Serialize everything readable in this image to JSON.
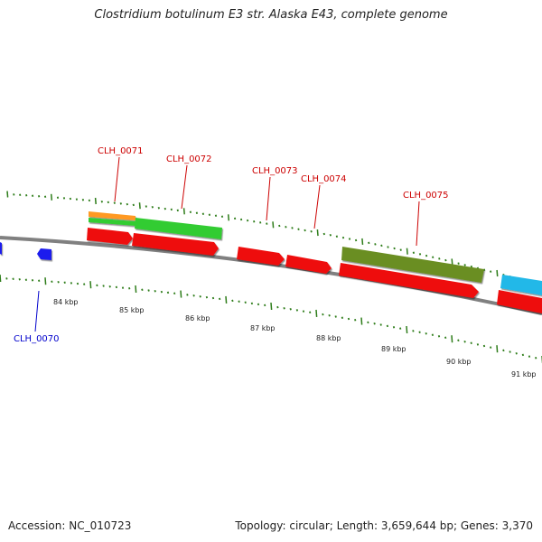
{
  "title": "Clostridium botulinum E3 str. Alaska E43, complete genome",
  "footer": {
    "accession": "Accession: NC_010723",
    "summary": "Topology: circular; Length: 3,659,644 bp; Genes: 3,370"
  },
  "colors": {
    "backbone": "#808080",
    "tick": "#2e7d1a",
    "label_forward": "#cc0000",
    "label_reverse": "#0000cc",
    "cds": "#ee1111",
    "cog_green": "#33cc33",
    "cog_orange": "#ff9922",
    "cog_olive": "#6b8e23",
    "cog_cyan": "#22b8e8",
    "gene_blue": "#1a1aee"
  },
  "scale_labels": [
    "84 kbp",
    "85 kbp",
    "86 kbp",
    "87 kbp",
    "88 kbp",
    "89 kbp",
    "90 kbp",
    "91 kbp"
  ],
  "genes": {
    "forward": [
      {
        "name": "CLH_0071"
      },
      {
        "name": "CLH_0072"
      },
      {
        "name": "CLH_0073"
      },
      {
        "name": "CLH_0074"
      },
      {
        "name": "CLH_0075"
      }
    ],
    "reverse": [
      {
        "name": "CLH_0070"
      }
    ]
  }
}
